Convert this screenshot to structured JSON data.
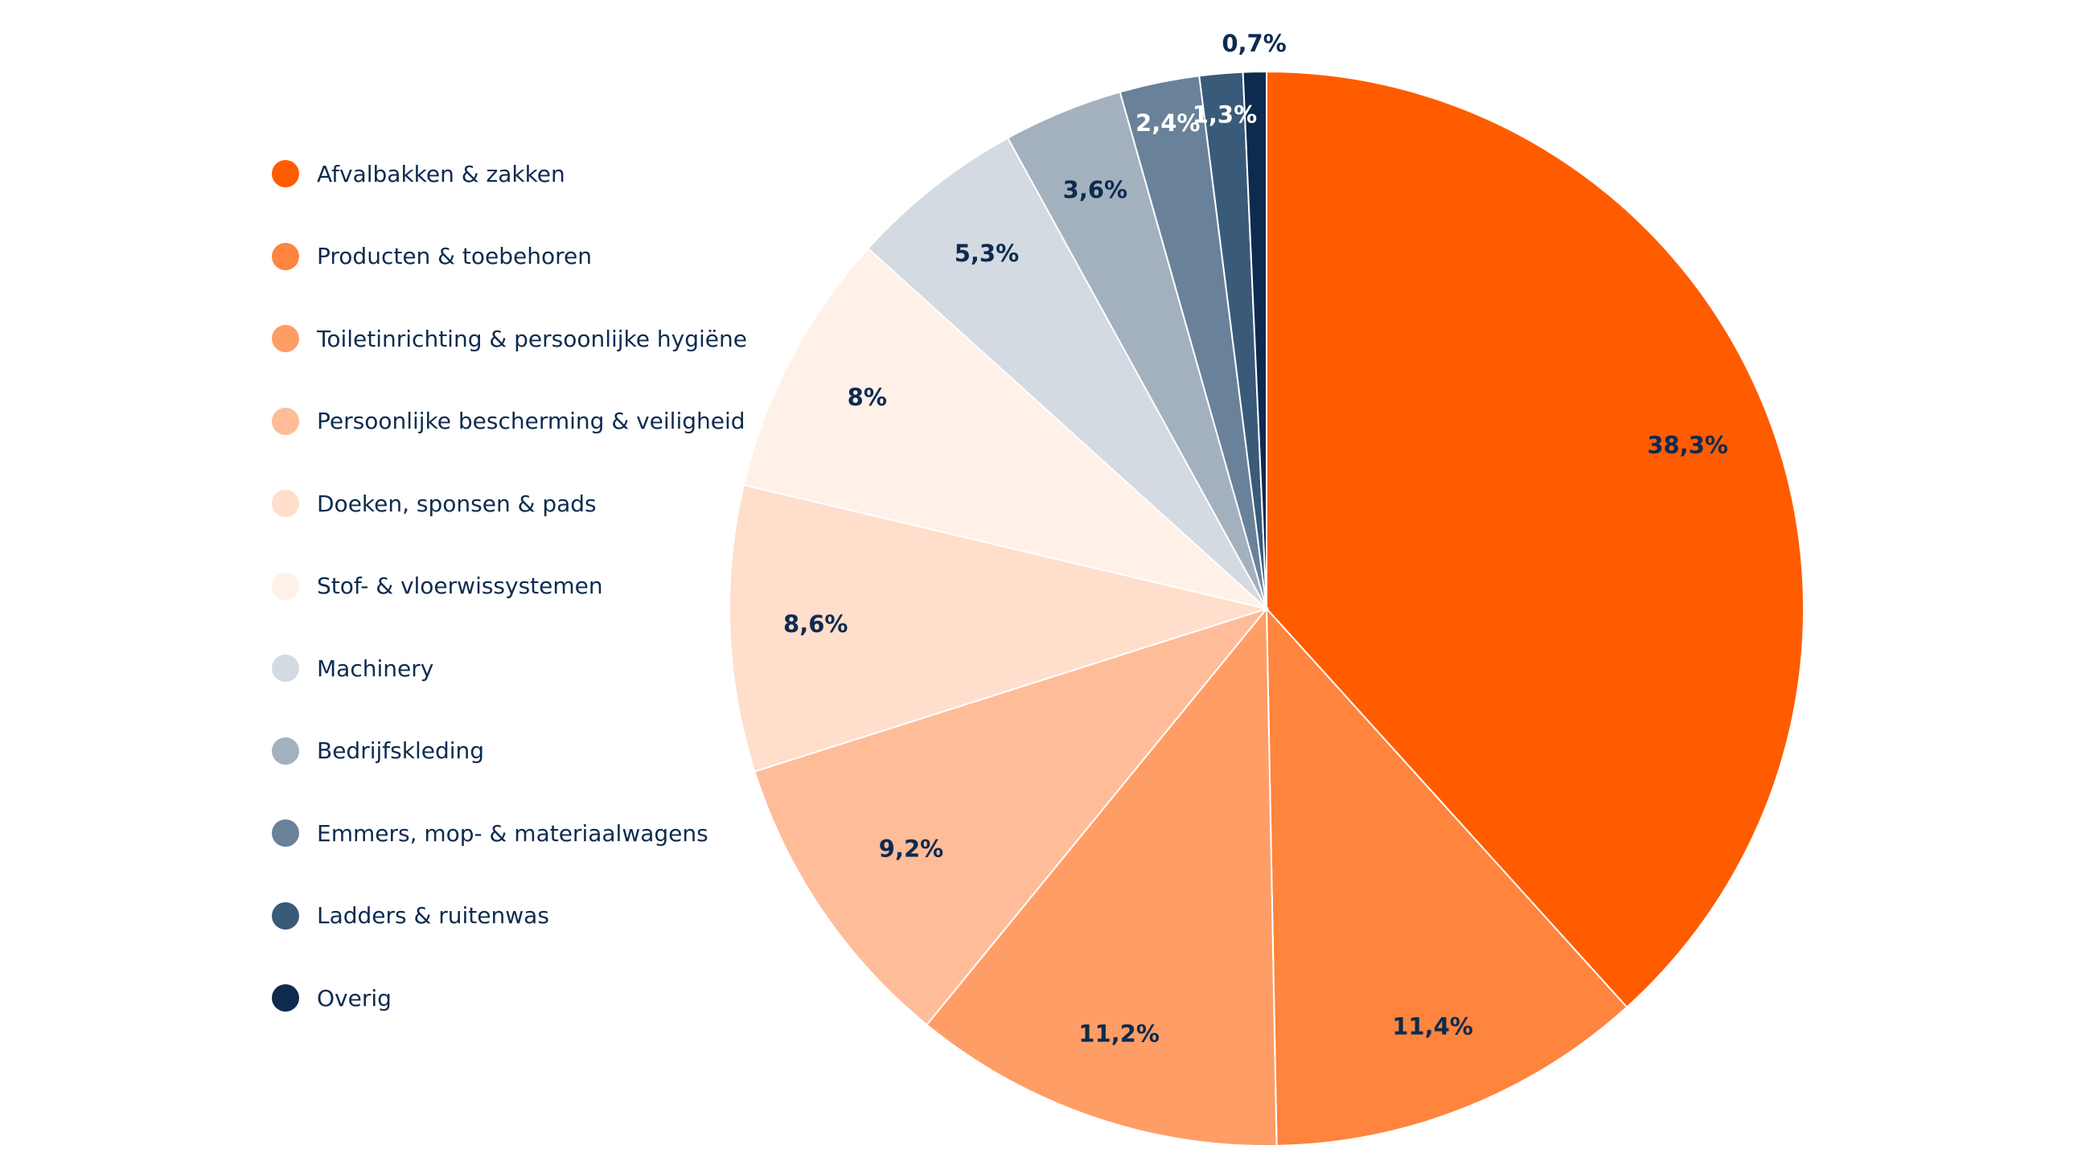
{
  "chart_data": {
    "type": "pie",
    "title": "",
    "legend_position": "left",
    "start_angle_deg": 0,
    "direction": "clockwise",
    "slices": [
      {
        "name": "Afvalbakken & zakken",
        "value": 38.3,
        "label": "38,3%",
        "color": "#ff5c00",
        "label_color": "#0d2b4f"
      },
      {
        "name": "Producten & toebehoren",
        "value": 11.4,
        "label": "11,4%",
        "color": "#ff843d",
        "label_color": "#0d2b4f"
      },
      {
        "name": "Toiletinrichting & persoonlijke hygiëne",
        "value": 11.2,
        "label": "11,2%",
        "color": "#ff9d66",
        "label_color": "#0d2b4f"
      },
      {
        "name": "Persoonlijke bescherming & veiligheid",
        "value": 9.2,
        "label": "9,2%",
        "color": "#ffbc99",
        "label_color": "#0d2b4f"
      },
      {
        "name": "Doeken, sponsen & pads",
        "value": 8.6,
        "label": "8,6%",
        "color": "#ffdecc",
        "label_color": "#0d2b4f"
      },
      {
        "name": "Stof- & vloerwissystemen",
        "value": 8,
        "label": "8%",
        "color": "#fff0e8",
        "label_color": "#0d2b4f"
      },
      {
        "name": "Machinery",
        "value": 5.3,
        "label": "5,3%",
        "color": "#d3dae1",
        "label_color": "#0d2b4f"
      },
      {
        "name": "Bedrijfskleding",
        "value": 3.6,
        "label": "3,6%",
        "color": "#a3b1be",
        "label_color": "#0d2b4f"
      },
      {
        "name": "Emmers, mop- & materiaalwagens",
        "value": 2.4,
        "label": "2,4%",
        "color": "#6a819a",
        "label_color": "#ffffff"
      },
      {
        "name": "Ladders & ruitenwas",
        "value": 1.3,
        "label": "1,3%",
        "color": "#3a5a7a",
        "label_color": "#ffffff"
      },
      {
        "name": "Overig",
        "value": 0.7,
        "label": "0,7%",
        "color": "#0d2b4f",
        "label_color": "#0d2b4f"
      }
    ]
  }
}
